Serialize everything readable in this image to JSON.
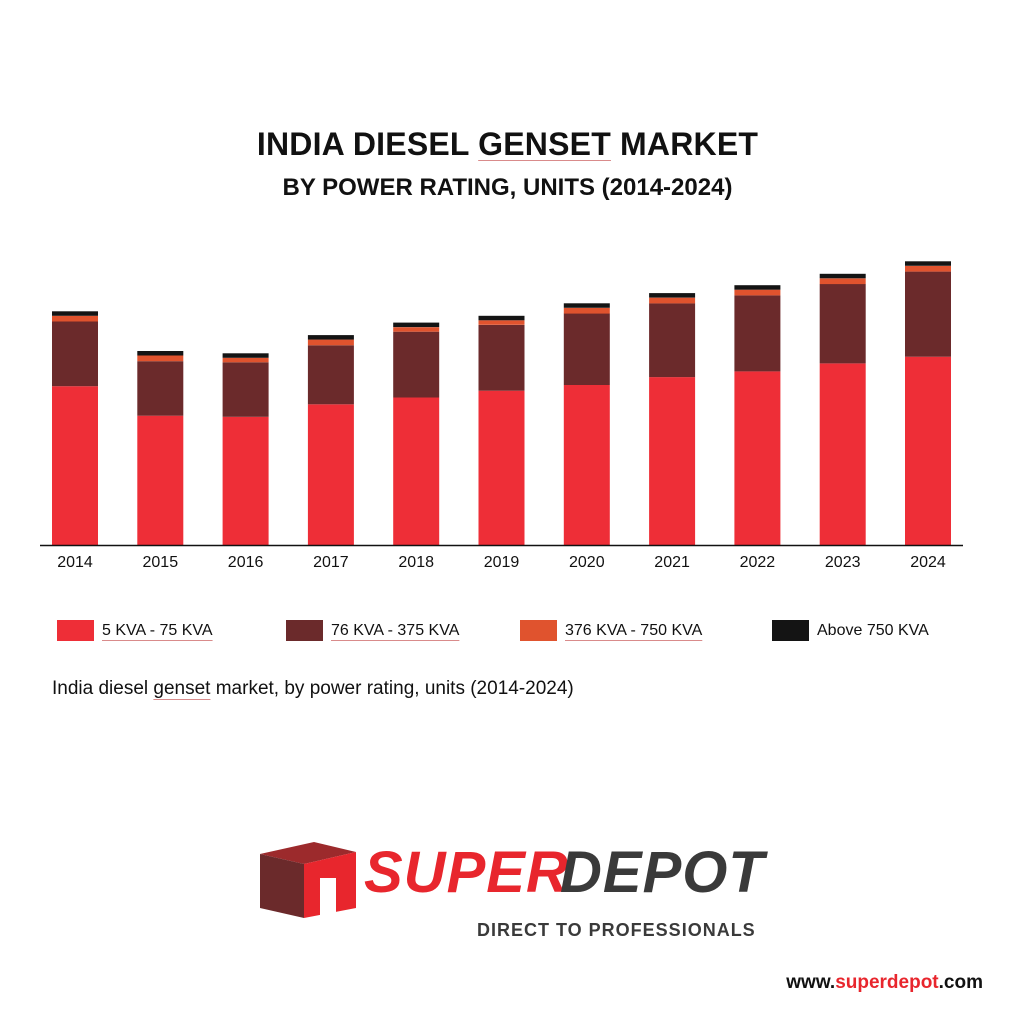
{
  "title": {
    "part1": "INDIA DIESEL ",
    "part2": "GENSET",
    "part3": " MARKET"
  },
  "subtitle": "BY POWER RATING, UNITS (2014-2024)",
  "caption": {
    "part1": "India diesel ",
    "part2": "genset",
    "part3": " market, by power rating, units (2014-2024)"
  },
  "colors": {
    "kva_5_75": "#ee2e37",
    "kva_76_375": "#6b2a2b",
    "kva_376_750": "#e0532e",
    "kva_above_750": "#141414",
    "brand_red": "#e8262d",
    "brand_dark": "#3a3a3a"
  },
  "legend": [
    {
      "label": "5 KVA - 75 KVA",
      "color": "#ee2e37"
    },
    {
      "label": "76 KVA - 375 KVA",
      "color": "#6b2a2b"
    },
    {
      "label": "376 KVA - 750 KVA",
      "color": "#e0532e"
    },
    {
      "label": "Above 750 KVA",
      "color": "#141414"
    }
  ],
  "chart_data": {
    "type": "bar",
    "stacked": true,
    "title": "INDIA DIESEL GENSET MARKET",
    "subtitle": "BY POWER RATING, UNITS (2014-2024)",
    "xlabel": "",
    "ylabel": "",
    "categories": [
      "2014",
      "2015",
      "2016",
      "2017",
      "2018",
      "2019",
      "2020",
      "2021",
      "2022",
      "2023",
      "2024"
    ],
    "series": [
      {
        "name": "5 KVA - 75 KVA",
        "color": "#ee2e37",
        "values": [
          140,
          114,
          113,
          124,
          130,
          136,
          141,
          148,
          153,
          160,
          166
        ]
      },
      {
        "name": "76 KVA - 375 KVA",
        "color": "#6b2a2b",
        "values": [
          57,
          48,
          48,
          52,
          58,
          58,
          63,
          65,
          67,
          70,
          75
        ]
      },
      {
        "name": "376 KVA - 750 KVA",
        "color": "#e0532e",
        "values": [
          5,
          5,
          4,
          5,
          4,
          4,
          5,
          5,
          5,
          5,
          5
        ]
      },
      {
        "name": "Above 750 KVA",
        "color": "#141414",
        "values": [
          4,
          4,
          4,
          4,
          4,
          4,
          4,
          4,
          4,
          4,
          4
        ]
      }
    ],
    "ylim": [
      0,
      260
    ],
    "grid": false,
    "legend_position": "bottom"
  },
  "logo": {
    "word1": "SUPER",
    "word2": "DEPOT",
    "tagline": "DIRECT TO PROFESSIONALS"
  },
  "website": {
    "prefix": "www.",
    "brand": "superdepot",
    "suffix": ".com"
  }
}
